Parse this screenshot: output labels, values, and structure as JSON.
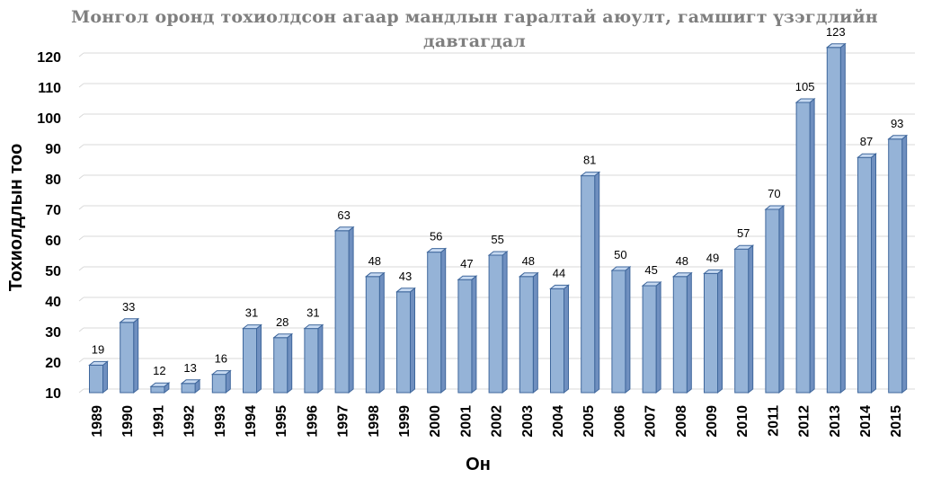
{
  "chart_data": {
    "type": "bar",
    "title_lines": [
      "Монгол оронд тохиолдсон агаар мандлын гаралтай аюулт, гамшигт үзэгдлийн",
      "давтагдал"
    ],
    "xlabel": "Он",
    "ylabel": "Тохиолдлын тоо",
    "ylim": [
      10,
      120
    ],
    "yticks": [
      10,
      20,
      30,
      40,
      50,
      60,
      70,
      80,
      90,
      100,
      110,
      120
    ],
    "categories": [
      "1989",
      "1990",
      "1991",
      "1992",
      "1993",
      "1994",
      "1995",
      "1996",
      "1997",
      "1998",
      "1999",
      "2000",
      "2001",
      "2002",
      "2003",
      "2004",
      "2005",
      "2006",
      "2007",
      "2008",
      "2009",
      "2010",
      "2011",
      "2012",
      "2013",
      "2014",
      "2015"
    ],
    "values": [
      19,
      33,
      12,
      13,
      16,
      31,
      28,
      31,
      63,
      48,
      43,
      56,
      47,
      55,
      48,
      44,
      81,
      50,
      45,
      48,
      49,
      57,
      70,
      105,
      123,
      87,
      93
    ],
    "grid": true,
    "bar_style": "3d",
    "colors": {
      "bar_front": "#95b3d7",
      "bar_side": "#6f8fbf",
      "bar_top": "#c6d9f1",
      "bar_edge": "#3f679c",
      "grid": "#d9d9d9"
    }
  }
}
